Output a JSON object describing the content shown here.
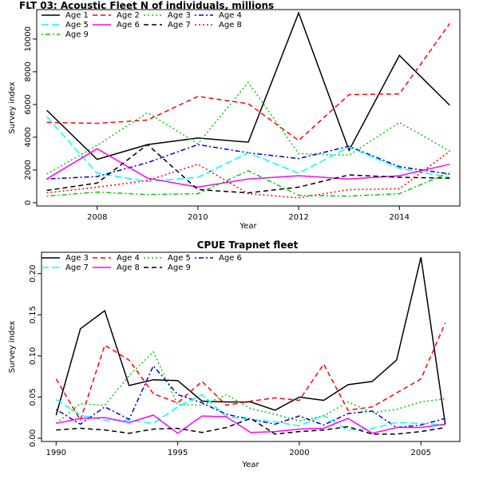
{
  "chart_data": [
    {
      "type": "line",
      "title": "FLT 03: Acoustic Fleet   N of individuals, millions",
      "xlabel": "Year",
      "ylabel": "Survey index",
      "xlim": [
        2006.8,
        2015.2
      ],
      "ylim": [
        -200,
        11800
      ],
      "xticks": [
        2008,
        2010,
        2012,
        2014
      ],
      "yticks": [
        0,
        2000,
        4000,
        6000,
        8000,
        10000
      ],
      "legend_position": "top-left",
      "legend_columns": 4,
      "x": [
        2007,
        2008,
        2009,
        2010,
        2011,
        2012,
        2013,
        2014,
        2015
      ],
      "series": [
        {
          "name": "Age 1",
          "color": "#000000",
          "dash": "solid",
          "values": [
            5650,
            2650,
            3550,
            3950,
            3700,
            11600,
            3200,
            9000,
            5950
          ]
        },
        {
          "name": "Age 2",
          "color": "#ff0000",
          "dash": "dashed",
          "values": [
            4900,
            4850,
            5050,
            6500,
            6050,
            3800,
            6600,
            6650,
            10950
          ]
        },
        {
          "name": "Age 3",
          "color": "#00cd00",
          "dash": "dotted",
          "values": [
            1750,
            3500,
            5500,
            3600,
            7350,
            3000,
            2900,
            4900,
            3150
          ]
        },
        {
          "name": "Age 4",
          "color": "#0000cd",
          "dash": "dotdash",
          "values": [
            1450,
            1600,
            2450,
            3550,
            3050,
            2700,
            3450,
            2200,
            1750
          ]
        },
        {
          "name": "Age 5",
          "color": "#00ffff",
          "dash": "longdash",
          "values": [
            5250,
            1800,
            1300,
            1550,
            3050,
            1800,
            3400,
            2100,
            1550
          ]
        },
        {
          "name": "Age 6",
          "color": "#ff00ff",
          "dash": "solid",
          "values": [
            1450,
            3300,
            1500,
            950,
            1450,
            1650,
            1450,
            1650,
            2350
          ]
        },
        {
          "name": "Age 7",
          "color": "#000000",
          "dash": "dashed",
          "values": [
            750,
            1200,
            3550,
            800,
            600,
            950,
            1700,
            1550,
            1500
          ]
        },
        {
          "name": "Age 8",
          "color": "#ff0000",
          "dash": "dotted",
          "values": [
            600,
            950,
            1350,
            2350,
            550,
            300,
            800,
            850,
            3150
          ]
        },
        {
          "name": "Age 9",
          "color": "#00cd00",
          "dash": "dotdash",
          "values": [
            400,
            650,
            500,
            550,
            1950,
            450,
            400,
            550,
            1850
          ]
        }
      ]
    },
    {
      "type": "line",
      "title": "CPUE Trapnet fleet",
      "xlabel": "Year",
      "ylabel": "Survey index",
      "xlim": [
        1989.4,
        2006.6
      ],
      "ylim": [
        -0.004,
        0.226
      ],
      "xticks": [
        1990,
        1995,
        2000,
        2005
      ],
      "yticks": [
        0.0,
        0.05,
        0.1,
        0.15,
        0.2
      ],
      "ytick_labels": [
        "0.00",
        "0.05",
        "0.10",
        "0.15",
        "0.20"
      ],
      "legend_position": "top-left",
      "legend_columns": 4,
      "x": [
        1990,
        1991,
        1992,
        1993,
        1994,
        1995,
        1996,
        1997,
        1998,
        1999,
        2000,
        2001,
        2002,
        2003,
        2004,
        2005,
        2006
      ],
      "series": [
        {
          "name": "Age 3",
          "color": "#000000",
          "dash": "solid",
          "values": [
            0.028,
            0.133,
            0.155,
            0.064,
            0.071,
            0.07,
            0.045,
            0.044,
            0.044,
            0.034,
            0.05,
            0.046,
            0.065,
            0.069,
            0.095,
            0.22,
            0.017
          ]
        },
        {
          "name": "Age 4",
          "color": "#ff0000",
          "dash": "dashed",
          "values": [
            0.072,
            0.022,
            0.113,
            0.095,
            0.054,
            0.043,
            0.069,
            0.04,
            0.045,
            0.049,
            0.046,
            0.09,
            0.034,
            0.038,
            0.055,
            0.072,
            0.14
          ]
        },
        {
          "name": "Age 5",
          "color": "#00cd00",
          "dash": "dotted",
          "values": [
            0.018,
            0.042,
            0.04,
            0.076,
            0.105,
            0.041,
            0.04,
            0.053,
            0.036,
            0.029,
            0.021,
            0.027,
            0.044,
            0.031,
            0.035,
            0.044,
            0.048
          ]
        },
        {
          "name": "Age 6",
          "color": "#0000cd",
          "dash": "dotdash",
          "values": [
            0.035,
            0.017,
            0.038,
            0.023,
            0.088,
            0.053,
            0.043,
            0.029,
            0.023,
            0.017,
            0.027,
            0.016,
            0.03,
            0.033,
            0.013,
            0.016,
            0.024
          ]
        },
        {
          "name": "Age 7",
          "color": "#00ffff",
          "dash": "longdash",
          "values": [
            0.047,
            0.028,
            0.022,
            0.022,
            0.018,
            0.038,
            0.053,
            0.026,
            0.023,
            0.02,
            0.015,
            0.028,
            0.01,
            0.012,
            0.019,
            0.018,
            0.016
          ]
        },
        {
          "name": "Age 8",
          "color": "#ff00ff",
          "dash": "solid",
          "values": [
            0.018,
            0.024,
            0.025,
            0.019,
            0.028,
            0.006,
            0.027,
            0.026,
            0.007,
            0.008,
            0.011,
            0.012,
            0.024,
            0.006,
            0.013,
            0.013,
            0.017
          ]
        },
        {
          "name": "Age 9",
          "color": "#000000",
          "dash": "dashed",
          "values": [
            0.01,
            0.012,
            0.01,
            0.006,
            0.011,
            0.012,
            0.007,
            0.013,
            0.024,
            0.005,
            0.008,
            0.01,
            0.014,
            0.005,
            0.005,
            0.008,
            0.013
          ]
        }
      ]
    }
  ]
}
